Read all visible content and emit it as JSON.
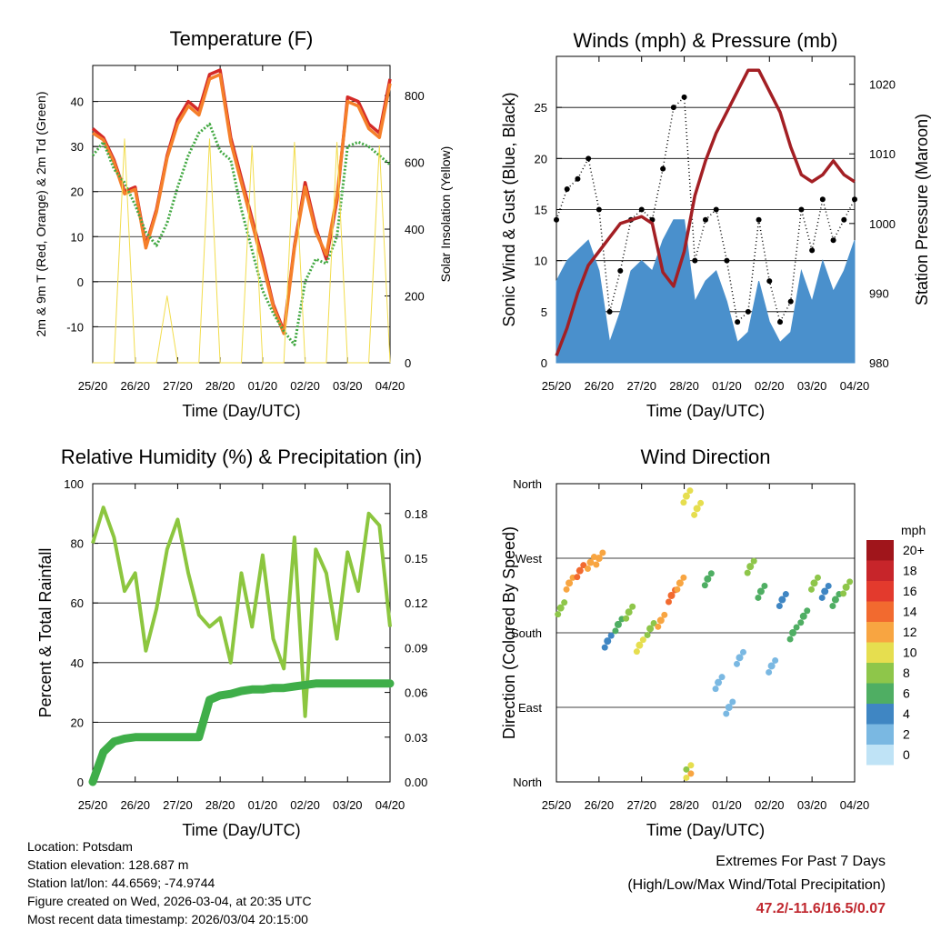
{
  "chart_data": [
    {
      "type": "line",
      "title": "Temperature (F)",
      "xlabel": "Time (Day/UTC)",
      "ylabel": "2m & 9m T (Red, Orange) & 2m Td (Green)",
      "y2label": "Solar Insolation (Yellow)",
      "x_ticks": [
        "25/20",
        "26/20",
        "27/20",
        "28/20",
        "01/20",
        "02/20",
        "03/20",
        "04/20"
      ],
      "xlim": [
        0,
        7
      ],
      "ylim": [
        -18,
        48
      ],
      "y_ticks": [
        -10,
        0,
        10,
        20,
        30,
        40
      ],
      "y2lim": [
        0,
        890
      ],
      "y2_ticks": [
        0,
        200,
        400,
        600,
        800
      ],
      "x": [
        0,
        0.25,
        0.5,
        0.75,
        1,
        1.25,
        1.5,
        1.75,
        2,
        2.25,
        2.5,
        2.75,
        3,
        3.25,
        3.5,
        3.75,
        4,
        4.25,
        4.5,
        4.75,
        5,
        5.25,
        5.5,
        5.75,
        6,
        6.25,
        6.5,
        6.75,
        7
      ],
      "series": [
        {
          "name": "2m T",
          "color": "#d42a27",
          "values": [
            34,
            32,
            27,
            20,
            21,
            8,
            16,
            28,
            36,
            40,
            38,
            46,
            47,
            32,
            23,
            14,
            5,
            -5,
            -11,
            8,
            22,
            12,
            5,
            18,
            41,
            40,
            35,
            33,
            45
          ]
        },
        {
          "name": "9m T",
          "color": "#f57f2a",
          "values": [
            33,
            31.5,
            26.5,
            19.5,
            20.5,
            7.5,
            15.5,
            27.5,
            35,
            39,
            37,
            45,
            46,
            31,
            22,
            13,
            4,
            -5.5,
            -11.5,
            7.5,
            21,
            11,
            6,
            19,
            40,
            39,
            34,
            32,
            44
          ]
        },
        {
          "name": "2m Td",
          "color": "#42a842",
          "values": [
            28,
            31,
            25,
            22,
            17,
            11,
            8,
            13,
            21,
            28,
            33,
            35,
            29,
            27,
            16,
            7,
            -2,
            -7,
            -11,
            -14,
            0,
            5,
            4,
            10,
            30,
            31,
            30,
            28,
            26
          ]
        },
        {
          "name": "Solar Insolation",
          "axis": "y2",
          "color": "#f2dd4e",
          "values": [
            0,
            0,
            0,
            670,
            0,
            0,
            0,
            200,
            0,
            0,
            0,
            670,
            0,
            0,
            0,
            650,
            0,
            0,
            0,
            660,
            0,
            0,
            0,
            660,
            0,
            0,
            0,
            650,
            0
          ]
        }
      ]
    },
    {
      "type": "line",
      "title": "Winds (mph) & Pressure (mb)",
      "xlabel": "Time (Day/UTC)",
      "ylabel": "Sonic Wind & Gust (Blue, Black)",
      "y2label": "Station Pressure (Maroon)",
      "x_ticks": [
        "25/20",
        "26/20",
        "27/20",
        "28/20",
        "01/20",
        "02/20",
        "03/20",
        "04/20"
      ],
      "xlim": [
        0,
        7
      ],
      "ylim": [
        0,
        30
      ],
      "y_ticks": [
        0,
        5,
        10,
        15,
        20,
        25
      ],
      "y2lim": [
        980,
        1024
      ],
      "y2_ticks": [
        980,
        990,
        1000,
        1010,
        1020
      ],
      "x": [
        0,
        0.25,
        0.5,
        0.75,
        1,
        1.25,
        1.5,
        1.75,
        2,
        2.25,
        2.5,
        2.75,
        3,
        3.25,
        3.5,
        3.75,
        4,
        4.25,
        4.5,
        4.75,
        5,
        5.25,
        5.5,
        5.75,
        6,
        6.25,
        6.5,
        6.75,
        7
      ],
      "series": [
        {
          "name": "Sonic Wind",
          "color": "#4a90cc",
          "values": [
            8,
            10,
            11,
            12,
            9,
            2,
            5,
            9,
            10,
            9,
            12,
            14,
            14,
            6,
            8,
            9,
            6,
            2,
            3,
            8,
            4,
            2,
            3,
            9,
            6,
            10,
            7,
            9,
            12
          ]
        },
        {
          "name": "Gust",
          "color": "#000000",
          "values": [
            14,
            17,
            18,
            20,
            15,
            5,
            9,
            14,
            15,
            14,
            19,
            25,
            26,
            10,
            14,
            15,
            10,
            4,
            5,
            14,
            8,
            4,
            6,
            15,
            11,
            16,
            12,
            14,
            16
          ]
        },
        {
          "name": "Station Pressure",
          "axis": "y2",
          "color": "#a31f24",
          "values": [
            981,
            985,
            990,
            994,
            996,
            998,
            1000,
            1000.5,
            1001,
            1000,
            993,
            991,
            996,
            1004,
            1009,
            1013,
            1016,
            1019,
            1022,
            1022,
            1019,
            1016,
            1011,
            1007,
            1006,
            1007,
            1009,
            1007,
            1006
          ]
        }
      ]
    },
    {
      "type": "line",
      "title": "Relative Humidity (%) & Precipitation (in)",
      "xlabel": "Time (Day/UTC)",
      "ylabel": "Percent & Total Rainfall",
      "x_ticks": [
        "25/20",
        "26/20",
        "27/20",
        "28/20",
        "01/20",
        "02/20",
        "03/20",
        "04/20"
      ],
      "xlim": [
        0,
        7
      ],
      "ylim": [
        0,
        100
      ],
      "y_ticks": [
        0,
        20,
        40,
        60,
        80,
        100
      ],
      "y2lim": [
        0,
        0.2
      ],
      "y2_ticks": [
        "0.00",
        "0.03",
        "0.06",
        "0.09",
        "0.12",
        "0.15",
        "0.18"
      ],
      "x": [
        0,
        0.25,
        0.5,
        0.75,
        1,
        1.25,
        1.5,
        1.75,
        2,
        2.25,
        2.5,
        2.75,
        3,
        3.25,
        3.5,
        3.75,
        4,
        4.25,
        4.5,
        4.75,
        5,
        5.25,
        5.5,
        5.75,
        6,
        6.25,
        6.5,
        6.75,
        7
      ],
      "series": [
        {
          "name": "Relative Humidity",
          "color": "#8cc63f",
          "values": [
            80,
            92,
            82,
            64,
            70,
            44,
            58,
            78,
            88,
            70,
            56,
            52,
            55,
            40,
            70,
            52,
            76,
            48,
            38,
            82,
            22,
            78,
            70,
            48,
            77,
            64,
            90,
            86,
            52
          ]
        },
        {
          "name": "Total Precipitation",
          "axis": "y2",
          "color": "#3fae49",
          "values": [
            0,
            0.02,
            0.027,
            0.029,
            0.03,
            0.03,
            0.03,
            0.03,
            0.03,
            0.03,
            0.03,
            0.055,
            0.058,
            0.059,
            0.061,
            0.062,
            0.062,
            0.063,
            0.063,
            0.064,
            0.065,
            0.066,
            0.066,
            0.066,
            0.066,
            0.066,
            0.066,
            0.066,
            0.066
          ]
        }
      ]
    },
    {
      "type": "scatter",
      "title": "Wind Direction",
      "xlabel": "Time (Day/UTC)",
      "ylabel": "Direction (Colored By Speed)",
      "x_ticks": [
        "25/20",
        "26/20",
        "27/20",
        "28/20",
        "01/20",
        "02/20",
        "03/20",
        "04/20"
      ],
      "xlim": [
        0,
        7
      ],
      "ylim": [
        0,
        360
      ],
      "y_tick_labels": [
        "North",
        "East",
        "South",
        "West",
        "North"
      ],
      "legend_title": "mph",
      "legend_labels": [
        "20+",
        "18",
        "16",
        "14",
        "12",
        "10",
        "8",
        "6",
        "4",
        "2",
        "0"
      ],
      "legend_colors": [
        "#a0151b",
        "#c7252a",
        "#e33a2d",
        "#f26a2f",
        "#f8a541",
        "#e6de4f",
        "#8ec64a",
        "#4fae63",
        "#3f86c3",
        "#7ab8e2",
        "#bfe3f6"
      ],
      "x": [
        0.1,
        0.3,
        0.55,
        0.8,
        1.0,
        1.2,
        1.45,
        1.7,
        1.95,
        2.2,
        2.45,
        2.7,
        2.9,
        3.05,
        3.3,
        3.55,
        3.8,
        4.05,
        4.3,
        4.55,
        4.8,
        5.05,
        5.3,
        5.55,
        5.8,
        6.05,
        6.3,
        6.55,
        6.8
      ],
      "directions": [
        210,
        240,
        255,
        265,
        270,
        170,
        190,
        205,
        165,
        185,
        195,
        225,
        240,
        345,
        330,
        245,
        120,
        90,
        150,
        260,
        230,
        140,
        220,
        180,
        200,
        240,
        230,
        220,
        235
      ],
      "speeds": [
        7,
        12,
        13,
        12,
        11,
        3,
        5,
        8,
        9,
        7,
        11,
        14,
        12,
        9,
        10,
        6,
        2,
        1,
        1,
        7,
        5,
        2,
        4,
        5,
        6,
        8,
        4,
        5,
        7
      ],
      "north_cluster": {
        "x": 3.05,
        "directions": [
          5,
          10,
          15,
          20
        ],
        "speeds": [
          10,
          12,
          8,
          9
        ]
      }
    }
  ],
  "footer": {
    "location": "Location: Potsdam",
    "elevation": "Station elevation: 128.687 m",
    "latlon": "Station lat/lon: 44.6569; -74.9744",
    "created": "Figure created on Wed, 2026-03-04, at 20:35 UTC",
    "timestamp": "Most recent data timestamp: 2026/03/04 20:15:00",
    "extremes_title": "Extremes For Past 7 Days",
    "extremes_subtitle": "(High/Low/Max Wind/Total Precipitation)",
    "extremes_values": "47.2/-11.6/16.5/0.07"
  }
}
